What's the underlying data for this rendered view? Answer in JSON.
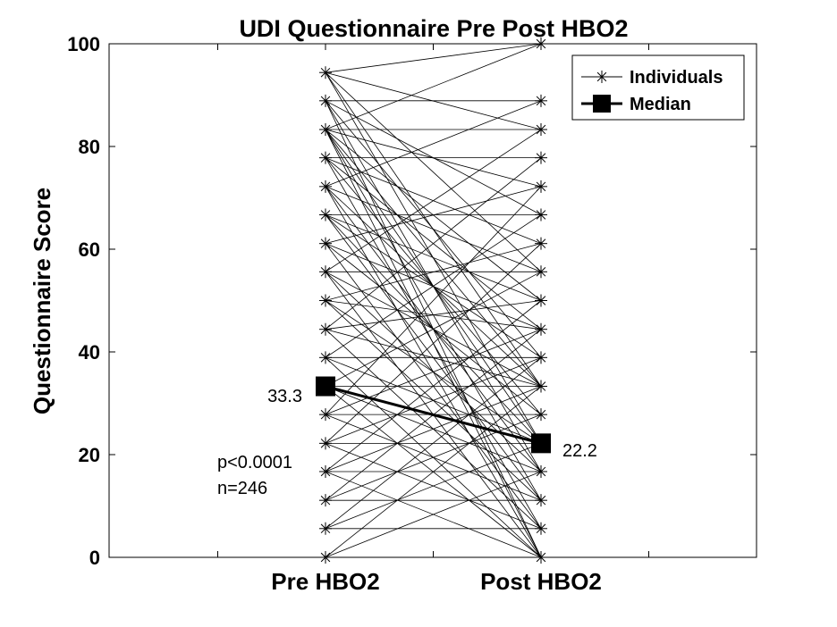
{
  "chart_data": {
    "type": "line",
    "title": "UDI Questionnaire Pre Post HBO2",
    "xlabel": "",
    "ylabel": "Questionnaire Score",
    "categories": [
      "Pre HBO2",
      "Post HBO2"
    ],
    "ylim": [
      0,
      100
    ],
    "yticks": [
      "0",
      "20",
      "40",
      "60",
      "80",
      "100"
    ],
    "grid": false,
    "legend": {
      "position": "top-right",
      "entries": [
        {
          "label": "Individuals",
          "marker": "asterisk",
          "line": "thin"
        },
        {
          "label": "Median",
          "marker": "filled-square",
          "line": "thick"
        }
      ]
    },
    "individual_levels": [
      0,
      5.6,
      11.1,
      16.7,
      22.2,
      27.8,
      33.3,
      38.9,
      44.4,
      50,
      55.6,
      61.1,
      66.7,
      72.2,
      77.8,
      83.3,
      88.9,
      94.4,
      100
    ],
    "individual_pairs": [
      [
        94.4,
        100
      ],
      [
        94.4,
        83.3
      ],
      [
        94.4,
        55.6
      ],
      [
        94.4,
        33.3
      ],
      [
        94.4,
        22.2
      ],
      [
        88.9,
        88.9
      ],
      [
        88.9,
        66.7
      ],
      [
        88.9,
        38.9
      ],
      [
        88.9,
        16.7
      ],
      [
        88.9,
        0
      ],
      [
        83.3,
        100
      ],
      [
        83.3,
        83.3
      ],
      [
        83.3,
        72.2
      ],
      [
        83.3,
        50
      ],
      [
        83.3,
        33.3
      ],
      [
        83.3,
        22.2
      ],
      [
        83.3,
        11.1
      ],
      [
        83.3,
        0
      ],
      [
        77.8,
        77.8
      ],
      [
        77.8,
        61.1
      ],
      [
        77.8,
        44.4
      ],
      [
        77.8,
        27.8
      ],
      [
        77.8,
        5.6
      ],
      [
        72.2,
        88.9
      ],
      [
        72.2,
        55.6
      ],
      [
        72.2,
        33.3
      ],
      [
        72.2,
        16.7
      ],
      [
        72.2,
        0
      ],
      [
        66.7,
        66.7
      ],
      [
        66.7,
        50
      ],
      [
        66.7,
        38.9
      ],
      [
        66.7,
        22.2
      ],
      [
        66.7,
        11.1
      ],
      [
        61.1,
        72.2
      ],
      [
        61.1,
        44.4
      ],
      [
        61.1,
        27.8
      ],
      [
        61.1,
        5.6
      ],
      [
        55.6,
        83.3
      ],
      [
        55.6,
        55.6
      ],
      [
        55.6,
        33.3
      ],
      [
        55.6,
        16.7
      ],
      [
        55.6,
        0
      ],
      [
        50,
        61.1
      ],
      [
        50,
        44.4
      ],
      [
        50,
        22.2
      ],
      [
        50,
        11.1
      ],
      [
        44.4,
        77.8
      ],
      [
        44.4,
        50
      ],
      [
        44.4,
        33.3
      ],
      [
        44.4,
        5.6
      ],
      [
        38.9,
        66.7
      ],
      [
        38.9,
        38.9
      ],
      [
        38.9,
        22.2
      ],
      [
        38.9,
        0
      ],
      [
        33.3,
        55.6
      ],
      [
        33.3,
        33.3
      ],
      [
        33.3,
        16.7
      ],
      [
        33.3,
        0
      ],
      [
        27.8,
        72.2
      ],
      [
        27.8,
        44.4
      ],
      [
        27.8,
        27.8
      ],
      [
        27.8,
        11.1
      ],
      [
        22.2,
        61.1
      ],
      [
        22.2,
        38.9
      ],
      [
        22.2,
        22.2
      ],
      [
        22.2,
        5.6
      ],
      [
        16.7,
        50
      ],
      [
        16.7,
        33.3
      ],
      [
        16.7,
        16.7
      ],
      [
        16.7,
        0
      ],
      [
        11.1,
        44.4
      ],
      [
        11.1,
        27.8
      ],
      [
        11.1,
        11.1
      ],
      [
        5.6,
        38.9
      ],
      [
        5.6,
        22.2
      ],
      [
        5.6,
        5.6
      ],
      [
        0,
        33.3
      ],
      [
        0,
        16.7
      ],
      [
        0,
        0
      ]
    ],
    "median": {
      "pre": 33.3,
      "post": 22.2,
      "pre_label": "33.3",
      "post_label": "22.2"
    },
    "annotations": [
      "p<0.0001",
      "n=246"
    ]
  }
}
